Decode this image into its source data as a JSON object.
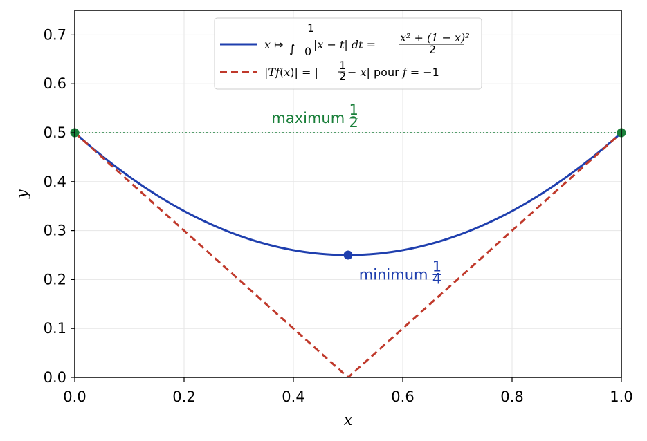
{
  "colors": {
    "blue": "#1f3fae",
    "red": "#c0392b",
    "green": "#1a7f3a",
    "grid": "#e6e6e6"
  },
  "chart_data": {
    "type": "line",
    "xlabel": "x",
    "ylabel": "y",
    "xlim": [
      0.0,
      1.0
    ],
    "ylim": [
      0.0,
      0.75
    ],
    "grid": true,
    "legend_position": "top-center",
    "x_ticks": [
      "0.0",
      "0.2",
      "0.4",
      "0.6",
      "0.8",
      "1.0"
    ],
    "y_ticks": [
      "0.0",
      "0.1",
      "0.2",
      "0.3",
      "0.4",
      "0.5",
      "0.6",
      "0.7"
    ],
    "x": [
      0.0,
      0.1,
      0.2,
      0.3,
      0.4,
      0.5,
      0.6,
      0.7,
      0.8,
      0.9,
      1.0
    ],
    "series": [
      {
        "name": "x ↦ ∫₀¹ |x − t| dt = (x² + (1 − x)²)/2",
        "style": "solid",
        "values": [
          0.5,
          0.41,
          0.34,
          0.29,
          0.26,
          0.25,
          0.26,
          0.29,
          0.34,
          0.41,
          0.5
        ]
      },
      {
        "name": "|Tf(x)| = |½ − x| pour f = −1",
        "style": "dashed",
        "values": [
          0.5,
          0.4,
          0.3,
          0.2,
          0.1,
          0.0,
          0.1,
          0.2,
          0.3,
          0.4,
          0.5
        ]
      }
    ],
    "reference_line": {
      "y": 0.5,
      "style": "dotted"
    },
    "points": [
      {
        "x": 0.0,
        "y": 0.5,
        "kind": "maximum"
      },
      {
        "x": 1.0,
        "y": 0.5,
        "kind": "maximum"
      },
      {
        "x": 0.5,
        "y": 0.25,
        "kind": "minimum"
      }
    ],
    "annotations": {
      "maximum": {
        "text": "maximum",
        "num": "1",
        "den": "2",
        "x": 0.36,
        "y": 0.52
      },
      "minimum": {
        "text": "minimum",
        "num": "1",
        "den": "4",
        "x": 0.52,
        "y": 0.2
      }
    }
  }
}
